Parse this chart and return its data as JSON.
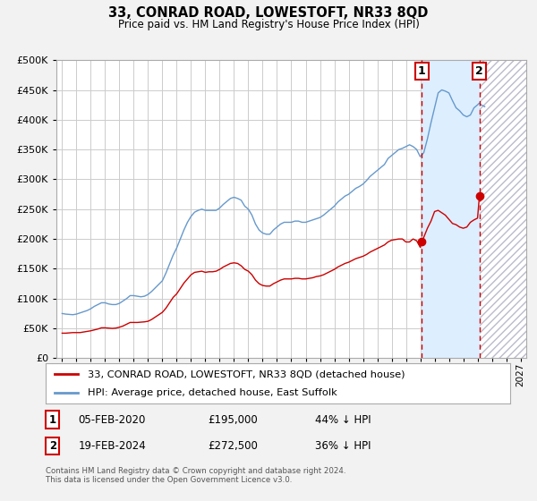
{
  "title": "33, CONRAD ROAD, LOWESTOFT, NR33 8QD",
  "subtitle": "Price paid vs. HM Land Registry's House Price Index (HPI)",
  "background_color": "#f2f2f2",
  "plot_bg_color": "#ffffff",
  "grid_color": "#cccccc",
  "ylim": [
    0,
    500000
  ],
  "yticks": [
    0,
    50000,
    100000,
    150000,
    200000,
    250000,
    300000,
    350000,
    400000,
    450000,
    500000
  ],
  "xlim_start": 1994.6,
  "xlim_end": 2027.4,
  "xticks": [
    1995,
    1996,
    1997,
    1998,
    1999,
    2000,
    2001,
    2002,
    2003,
    2004,
    2005,
    2006,
    2007,
    2008,
    2009,
    2010,
    2011,
    2012,
    2013,
    2014,
    2015,
    2016,
    2017,
    2018,
    2019,
    2020,
    2021,
    2022,
    2023,
    2024,
    2025,
    2026,
    2027
  ],
  "red_line_label": "33, CONRAD ROAD, LOWESTOFT, NR33 8QD (detached house)",
  "blue_line_label": "HPI: Average price, detached house, East Suffolk",
  "red_color": "#cc0000",
  "blue_color": "#6699cc",
  "shade_color": "#ddeeff",
  "hatch_color": "#bbbbcc",
  "transaction1_date": "05-FEB-2020",
  "transaction1_price": 195000,
  "transaction1_pct": "44% ↓ HPI",
  "transaction1_x": 2020.1,
  "transaction1_y": 195000,
  "transaction2_date": "19-FEB-2024",
  "transaction2_price": 272500,
  "transaction2_pct": "36% ↓ HPI",
  "transaction2_x": 2024.13,
  "transaction2_y": 272500,
  "vline1_x": 2020.1,
  "vline2_x": 2024.13,
  "footer": "Contains HM Land Registry data © Crown copyright and database right 2024.\nThis data is licensed under the Open Government Licence v3.0.",
  "hpi_data_x": [
    1995.0,
    1995.25,
    1995.5,
    1995.75,
    1996.0,
    1996.25,
    1996.5,
    1996.75,
    1997.0,
    1997.25,
    1997.5,
    1997.75,
    1998.0,
    1998.25,
    1998.5,
    1998.75,
    1999.0,
    1999.25,
    1999.5,
    1999.75,
    2000.0,
    2000.25,
    2000.5,
    2000.75,
    2001.0,
    2001.25,
    2001.5,
    2001.75,
    2002.0,
    2002.25,
    2002.5,
    2002.75,
    2003.0,
    2003.25,
    2003.5,
    2003.75,
    2004.0,
    2004.25,
    2004.5,
    2004.75,
    2005.0,
    2005.25,
    2005.5,
    2005.75,
    2006.0,
    2006.25,
    2006.5,
    2006.75,
    2007.0,
    2007.25,
    2007.5,
    2007.75,
    2008.0,
    2008.25,
    2008.5,
    2008.75,
    2009.0,
    2009.25,
    2009.5,
    2009.75,
    2010.0,
    2010.25,
    2010.5,
    2010.75,
    2011.0,
    2011.25,
    2011.5,
    2011.75,
    2012.0,
    2012.25,
    2012.5,
    2012.75,
    2013.0,
    2013.25,
    2013.5,
    2013.75,
    2014.0,
    2014.25,
    2014.5,
    2014.75,
    2015.0,
    2015.25,
    2015.5,
    2015.75,
    2016.0,
    2016.25,
    2016.5,
    2016.75,
    2017.0,
    2017.25,
    2017.5,
    2017.75,
    2018.0,
    2018.25,
    2018.5,
    2018.75,
    2019.0,
    2019.25,
    2019.5,
    2019.75,
    2020.0,
    2020.25,
    2020.5,
    2020.75,
    2021.0,
    2021.25,
    2021.5,
    2021.75,
    2022.0,
    2022.25,
    2022.5,
    2022.75,
    2023.0,
    2023.25,
    2023.5,
    2023.75,
    2024.0,
    2024.13,
    2024.25,
    2024.5
  ],
  "hpi_data_y": [
    75000,
    74000,
    73500,
    73000,
    74000,
    76000,
    78000,
    80000,
    83000,
    87000,
    90000,
    93000,
    93000,
    91000,
    90000,
    90000,
    92000,
    96000,
    100000,
    105000,
    105000,
    104000,
    103000,
    104000,
    107000,
    112000,
    118000,
    124000,
    130000,
    143000,
    158000,
    173000,
    185000,
    200000,
    215000,
    228000,
    238000,
    245000,
    248000,
    250000,
    248000,
    248000,
    248000,
    248000,
    252000,
    258000,
    263000,
    268000,
    270000,
    268000,
    265000,
    255000,
    250000,
    240000,
    225000,
    215000,
    210000,
    208000,
    208000,
    215000,
    220000,
    225000,
    228000,
    228000,
    228000,
    230000,
    230000,
    228000,
    228000,
    230000,
    232000,
    234000,
    236000,
    240000,
    245000,
    250000,
    255000,
    262000,
    267000,
    272000,
    275000,
    280000,
    285000,
    288000,
    292000,
    298000,
    305000,
    310000,
    315000,
    320000,
    325000,
    335000,
    340000,
    345000,
    350000,
    352000,
    355000,
    358000,
    355000,
    350000,
    338000,
    345000,
    368000,
    395000,
    420000,
    445000,
    450000,
    448000,
    445000,
    432000,
    420000,
    415000,
    408000,
    405000,
    408000,
    420000,
    425000,
    428000,
    425000,
    422000
  ],
  "red_data_x": [
    1995.0,
    1995.25,
    1995.5,
    1995.75,
    1996.0,
    1996.25,
    1996.5,
    1996.75,
    1997.0,
    1997.25,
    1997.5,
    1997.75,
    1998.0,
    1998.25,
    1998.5,
    1998.75,
    1999.0,
    1999.25,
    1999.5,
    1999.75,
    2000.0,
    2000.25,
    2000.5,
    2000.75,
    2001.0,
    2001.25,
    2001.5,
    2001.75,
    2002.0,
    2002.25,
    2002.5,
    2002.75,
    2003.0,
    2003.25,
    2003.5,
    2003.75,
    2004.0,
    2004.25,
    2004.5,
    2004.75,
    2005.0,
    2005.25,
    2005.5,
    2005.75,
    2006.0,
    2006.25,
    2006.5,
    2006.75,
    2007.0,
    2007.25,
    2007.5,
    2007.75,
    2008.0,
    2008.25,
    2008.5,
    2008.75,
    2009.0,
    2009.25,
    2009.5,
    2009.75,
    2010.0,
    2010.25,
    2010.5,
    2010.75,
    2011.0,
    2011.25,
    2011.5,
    2011.75,
    2012.0,
    2012.25,
    2012.5,
    2012.75,
    2013.0,
    2013.25,
    2013.5,
    2013.75,
    2014.0,
    2014.25,
    2014.5,
    2014.75,
    2015.0,
    2015.25,
    2015.5,
    2015.75,
    2016.0,
    2016.25,
    2016.5,
    2016.75,
    2017.0,
    2017.25,
    2017.5,
    2017.75,
    2018.0,
    2018.25,
    2018.5,
    2018.75,
    2019.0,
    2019.25,
    2019.5,
    2019.75,
    2020.0,
    2020.1,
    2020.25,
    2020.5,
    2020.75,
    2021.0,
    2021.25,
    2021.5,
    2021.75,
    2022.0,
    2022.25,
    2022.5,
    2022.75,
    2023.0,
    2023.25,
    2023.5,
    2023.75,
    2024.0,
    2024.13,
    2024.25
  ],
  "red_data_y": [
    42000,
    42000,
    42500,
    43000,
    43000,
    43000,
    44000,
    45000,
    46000,
    47500,
    49000,
    51000,
    51000,
    50500,
    50000,
    50500,
    52000,
    54000,
    57000,
    60000,
    60000,
    60000,
    60500,
    61000,
    62000,
    65000,
    69000,
    73000,
    77000,
    84000,
    93000,
    102000,
    108000,
    117000,
    126000,
    133000,
    140000,
    144000,
    145000,
    146000,
    144000,
    145000,
    145000,
    146000,
    149000,
    153000,
    156000,
    159000,
    160000,
    159000,
    155000,
    149000,
    146000,
    140000,
    131000,
    125000,
    122000,
    121000,
    121000,
    125000,
    128000,
    131000,
    133000,
    133000,
    133000,
    134000,
    134000,
    133000,
    133000,
    134000,
    135000,
    137000,
    138000,
    140000,
    143000,
    146000,
    149000,
    153000,
    156000,
    159000,
    161000,
    164000,
    167000,
    169000,
    171000,
    174000,
    178000,
    181000,
    184000,
    187000,
    190000,
    195000,
    198000,
    199000,
    200000,
    200000,
    195000,
    195000,
    200000,
    197000,
    186000,
    195000,
    203000,
    218000,
    230000,
    246000,
    248000,
    244000,
    240000,
    233000,
    226000,
    224000,
    220000,
    218000,
    220000,
    228000,
    232000,
    235000,
    272500,
    265000
  ]
}
